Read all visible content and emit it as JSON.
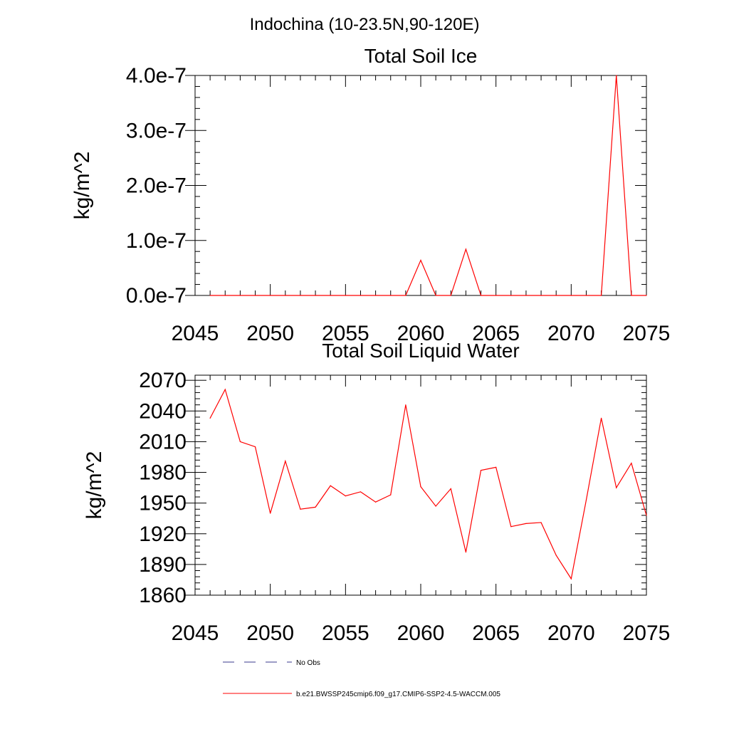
{
  "page_title": "Indochina (10-23.5N,90-120E)",
  "chart_data": [
    {
      "type": "line",
      "title": "Total Soil Ice",
      "xlabel": "",
      "ylabel": "kg/m^2",
      "xlim": [
        2045,
        2075
      ],
      "ylim": [
        0,
        4e-07
      ],
      "x_ticks": [
        2045,
        2050,
        2055,
        2060,
        2065,
        2070,
        2075
      ],
      "x_tick_labels": [
        "2045",
        "2050",
        "2055",
        "2060",
        "2065",
        "2070",
        "2075"
      ],
      "y_ticks": [
        0,
        1e-07,
        2e-07,
        3e-07,
        4e-07
      ],
      "y_tick_labels": [
        "0.0e-7",
        "1.0e-7",
        "2.0e-7",
        "3.0e-7",
        "4.0e-7"
      ],
      "grid": false,
      "series": [
        {
          "name": "b.e21.BWSSP245cmip6.f09_g17.CMIP6-SSP2-4.5-WACCM.005",
          "color": "#ff0000",
          "x": [
            2046,
            2047,
            2048,
            2049,
            2050,
            2051,
            2052,
            2053,
            2054,
            2055,
            2056,
            2057,
            2058,
            2059,
            2060,
            2061,
            2062,
            2063,
            2064,
            2065,
            2066,
            2067,
            2068,
            2069,
            2070,
            2071,
            2072,
            2073,
            2074,
            2075
          ],
          "values": [
            0,
            0,
            0,
            0,
            0,
            0,
            0,
            0,
            0,
            0,
            0,
            0,
            0,
            0,
            6.4e-08,
            0,
            0,
            8.4e-08,
            0,
            0,
            0,
            0,
            0,
            0,
            0,
            0,
            0,
            4e-07,
            0,
            0
          ]
        }
      ]
    },
    {
      "type": "line",
      "title": "Total Soil Liquid Water",
      "xlabel": "",
      "ylabel": "kg/m^2",
      "xlim": [
        2045,
        2075
      ],
      "ylim": [
        1860,
        2075
      ],
      "x_ticks": [
        2045,
        2050,
        2055,
        2060,
        2065,
        2070,
        2075
      ],
      "x_tick_labels": [
        "2045",
        "2050",
        "2055",
        "2060",
        "2065",
        "2070",
        "2075"
      ],
      "y_ticks": [
        1860,
        1890,
        1920,
        1950,
        1980,
        2010,
        2040,
        2070
      ],
      "y_tick_labels": [
        "1860",
        "1890",
        "1920",
        "1950",
        "1980",
        "2010",
        "2040",
        "2070"
      ],
      "grid": false,
      "series": [
        {
          "name": "b.e21.BWSSP245cmip6.f09_g17.CMIP6-SSP2-4.5-WACCM.005",
          "color": "#ff0000",
          "x": [
            2046,
            2047,
            2048,
            2049,
            2050,
            2051,
            2052,
            2053,
            2054,
            2055,
            2056,
            2057,
            2058,
            2059,
            2060,
            2061,
            2062,
            2063,
            2064,
            2065,
            2066,
            2067,
            2068,
            2069,
            2070,
            2071,
            2072,
            2073,
            2074,
            2075
          ],
          "values": [
            2033,
            2061,
            2010,
            2005,
            1940,
            1991,
            1944,
            1946,
            1967,
            1957,
            1961,
            1951,
            1958,
            2046,
            1966,
            1947,
            1964,
            1902,
            1982,
            1985,
            1927,
            1930,
            1931,
            1899,
            1876,
            1953,
            2033,
            1965,
            1989,
            1938
          ]
        }
      ]
    }
  ],
  "legend": {
    "placement": "bottom-left",
    "items": [
      {
        "label": "No Obs",
        "style": "dashed",
        "color": "#3a3a8c"
      },
      {
        "label": "b.e21.BWSSP245cmip6.f09_g17.CMIP6-SSP2-4.5-WACCM.005",
        "style": "solid",
        "color": "#ff0000"
      }
    ]
  }
}
